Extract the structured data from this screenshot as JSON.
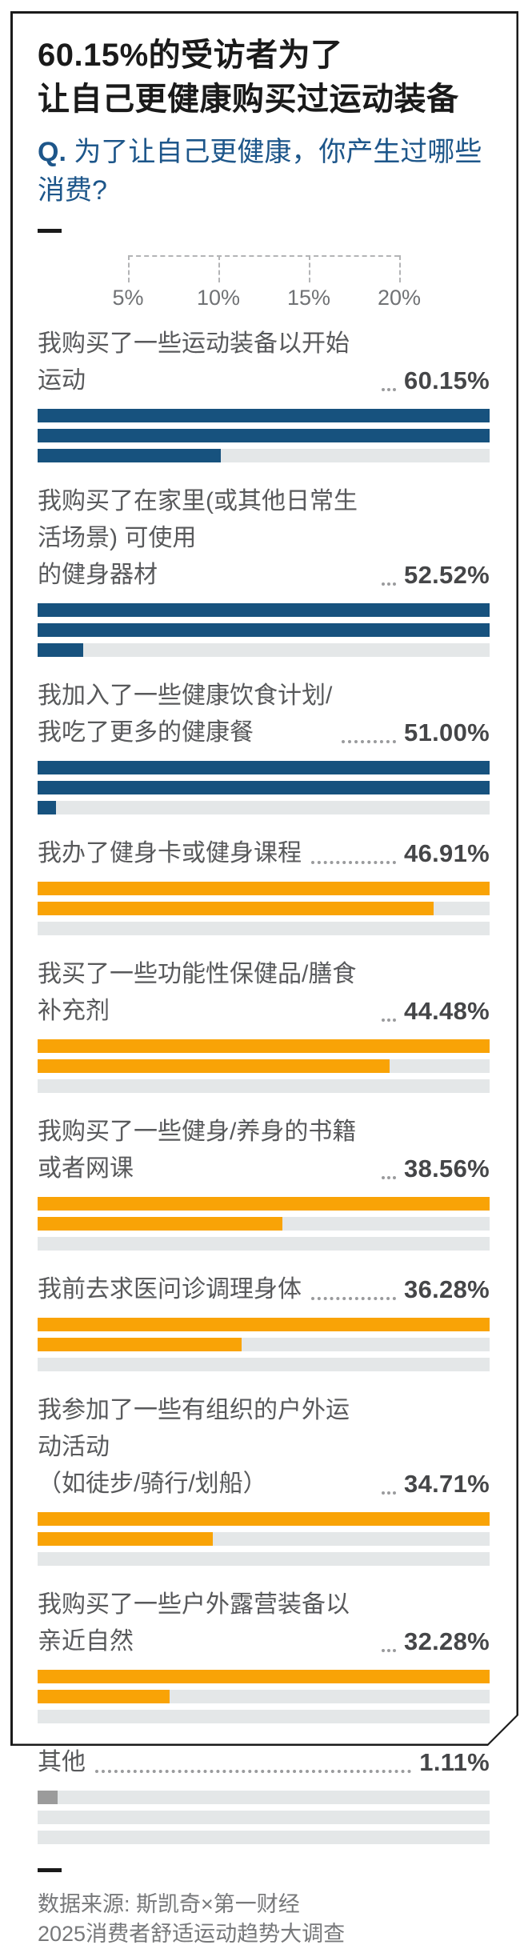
{
  "header": {
    "title": "60.15%的受访者为了\n让自己更健康购买过运动装备",
    "question_prefix": "Q.",
    "question_text": " 为了让自己更健康，你产生过哪些\n消费?"
  },
  "chart_data": {
    "type": "bar",
    "orientation": "horizontal-wrapped-rows",
    "row_capacity_percent": 25,
    "rows_per_item": 3,
    "axis_range": [
      0,
      25
    ],
    "axis_ticks": [
      {
        "label": "5%",
        "value": 5
      },
      {
        "label": "10%",
        "value": 10
      },
      {
        "label": "15%",
        "value": 15
      },
      {
        "label": "20%",
        "value": 20
      }
    ],
    "colors": {
      "blue": "#17527e",
      "orange": "#f9a306",
      "other_gray": "#9b9b9b",
      "track": "#e4e7e8"
    },
    "items": [
      {
        "label": "我购买了一些运动装备以开始运动",
        "value": 60.15,
        "display": "60.15%",
        "color": "blue"
      },
      {
        "label": "我购买了在家里(或其他日常生活场景) 可使用\n的健身器材",
        "value": 52.52,
        "display": "52.52%",
        "color": "blue"
      },
      {
        "label": "我加入了一些健康饮食计划/\n我吃了更多的健康餐",
        "value": 51.0,
        "display": "51.00%",
        "color": "blue"
      },
      {
        "label": "我办了健身卡或健身课程",
        "value": 46.91,
        "display": "46.91%",
        "color": "orange"
      },
      {
        "label": "我买了一些功能性保健品/膳食补充剂",
        "value": 44.48,
        "display": "44.48%",
        "color": "orange"
      },
      {
        "label": "我购买了一些健身/养身的书籍或者网课",
        "value": 38.56,
        "display": "38.56%",
        "color": "orange"
      },
      {
        "label": "我前去求医问诊调理身体",
        "value": 36.28,
        "display": "36.28%",
        "color": "orange"
      },
      {
        "label": "我参加了一些有组织的户外运动活动\n（如徒步/骑行/划船）",
        "value": 34.71,
        "display": "34.71%",
        "color": "orange"
      },
      {
        "label": "我购买了一些户外露营装备以亲近自然",
        "value": 32.28,
        "display": "32.28%",
        "color": "orange"
      },
      {
        "label": "其他",
        "value": 1.11,
        "display": "1.11%",
        "color": "other_gray"
      }
    ]
  },
  "footer": {
    "source": "数据来源: 斯凯奇×第一财经\n2025消费者舒适运动趋势大调查"
  }
}
